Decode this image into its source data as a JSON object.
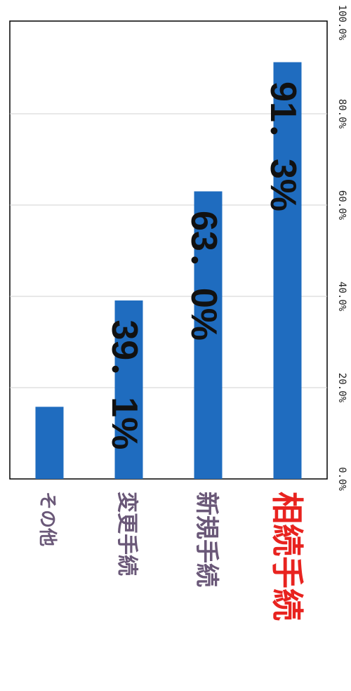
{
  "chart_data": {
    "type": "bar",
    "orientation": "vertical, image rotated 90 degrees clockwise",
    "categories": [
      "その他",
      "変更手続",
      "新規手続",
      "相続手続"
    ],
    "values": [
      15.8,
      39.1,
      63.0,
      91.3
    ],
    "data_labels": [
      "",
      "39．1%",
      "63．0%",
      "91．3%"
    ],
    "ylim": [
      0,
      100
    ],
    "ticks": [
      "0.0%",
      "20.0%",
      "40.0%",
      "60.0%",
      "80.0%",
      "100.0%"
    ],
    "grid": true,
    "legend": "none",
    "colors": {
      "bar": "#1f6cbf",
      "category_label": "#6a5878",
      "highlight_label": "#e8231f",
      "grid": "#d0d0d0",
      "frame": "#000000"
    },
    "highlight_category": "相続手続"
  }
}
